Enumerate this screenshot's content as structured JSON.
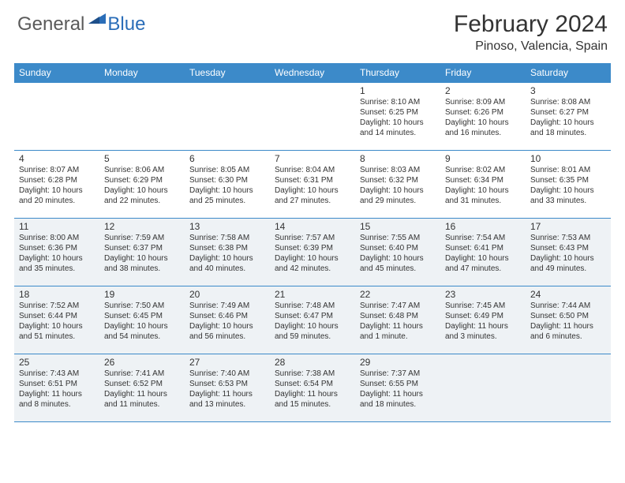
{
  "logo": {
    "text1": "General",
    "text2": "Blue"
  },
  "title": "February 2024",
  "location": "Pinoso, Valencia, Spain",
  "colors": {
    "headerBar": "#3c8ac9",
    "shaded": "#eef2f5",
    "text": "#333333",
    "logoGray": "#5a5a5a",
    "logoBlue": "#2a6db8"
  },
  "dayHeaders": [
    "Sunday",
    "Monday",
    "Tuesday",
    "Wednesday",
    "Thursday",
    "Friday",
    "Saturday"
  ],
  "weeks": [
    [
      {
        "blank": true
      },
      {
        "blank": true
      },
      {
        "blank": true
      },
      {
        "blank": true
      },
      {
        "day": "1",
        "sunrise": "8:10 AM",
        "sunset": "6:25 PM",
        "daylight1": "Daylight: 10 hours",
        "daylight2": "and 14 minutes."
      },
      {
        "day": "2",
        "sunrise": "8:09 AM",
        "sunset": "6:26 PM",
        "daylight1": "Daylight: 10 hours",
        "daylight2": "and 16 minutes."
      },
      {
        "day": "3",
        "sunrise": "8:08 AM",
        "sunset": "6:27 PM",
        "daylight1": "Daylight: 10 hours",
        "daylight2": "and 18 minutes."
      }
    ],
    [
      {
        "day": "4",
        "sunrise": "8:07 AM",
        "sunset": "6:28 PM",
        "daylight1": "Daylight: 10 hours",
        "daylight2": "and 20 minutes."
      },
      {
        "day": "5",
        "sunrise": "8:06 AM",
        "sunset": "6:29 PM",
        "daylight1": "Daylight: 10 hours",
        "daylight2": "and 22 minutes."
      },
      {
        "day": "6",
        "sunrise": "8:05 AM",
        "sunset": "6:30 PM",
        "daylight1": "Daylight: 10 hours",
        "daylight2": "and 25 minutes."
      },
      {
        "day": "7",
        "sunrise": "8:04 AM",
        "sunset": "6:31 PM",
        "daylight1": "Daylight: 10 hours",
        "daylight2": "and 27 minutes."
      },
      {
        "day": "8",
        "sunrise": "8:03 AM",
        "sunset": "6:32 PM",
        "daylight1": "Daylight: 10 hours",
        "daylight2": "and 29 minutes."
      },
      {
        "day": "9",
        "sunrise": "8:02 AM",
        "sunset": "6:34 PM",
        "daylight1": "Daylight: 10 hours",
        "daylight2": "and 31 minutes."
      },
      {
        "day": "10",
        "sunrise": "8:01 AM",
        "sunset": "6:35 PM",
        "daylight1": "Daylight: 10 hours",
        "daylight2": "and 33 minutes."
      }
    ],
    [
      {
        "day": "11",
        "sunrise": "8:00 AM",
        "sunset": "6:36 PM",
        "daylight1": "Daylight: 10 hours",
        "daylight2": "and 35 minutes.",
        "shaded": true
      },
      {
        "day": "12",
        "sunrise": "7:59 AM",
        "sunset": "6:37 PM",
        "daylight1": "Daylight: 10 hours",
        "daylight2": "and 38 minutes.",
        "shaded": true
      },
      {
        "day": "13",
        "sunrise": "7:58 AM",
        "sunset": "6:38 PM",
        "daylight1": "Daylight: 10 hours",
        "daylight2": "and 40 minutes.",
        "shaded": true
      },
      {
        "day": "14",
        "sunrise": "7:57 AM",
        "sunset": "6:39 PM",
        "daylight1": "Daylight: 10 hours",
        "daylight2": "and 42 minutes.",
        "shaded": true
      },
      {
        "day": "15",
        "sunrise": "7:55 AM",
        "sunset": "6:40 PM",
        "daylight1": "Daylight: 10 hours",
        "daylight2": "and 45 minutes.",
        "shaded": true
      },
      {
        "day": "16",
        "sunrise": "7:54 AM",
        "sunset": "6:41 PM",
        "daylight1": "Daylight: 10 hours",
        "daylight2": "and 47 minutes.",
        "shaded": true
      },
      {
        "day": "17",
        "sunrise": "7:53 AM",
        "sunset": "6:43 PM",
        "daylight1": "Daylight: 10 hours",
        "daylight2": "and 49 minutes.",
        "shaded": true
      }
    ],
    [
      {
        "day": "18",
        "sunrise": "7:52 AM",
        "sunset": "6:44 PM",
        "daylight1": "Daylight: 10 hours",
        "daylight2": "and 51 minutes.",
        "shaded": true
      },
      {
        "day": "19",
        "sunrise": "7:50 AM",
        "sunset": "6:45 PM",
        "daylight1": "Daylight: 10 hours",
        "daylight2": "and 54 minutes.",
        "shaded": true
      },
      {
        "day": "20",
        "sunrise": "7:49 AM",
        "sunset": "6:46 PM",
        "daylight1": "Daylight: 10 hours",
        "daylight2": "and 56 minutes.",
        "shaded": true
      },
      {
        "day": "21",
        "sunrise": "7:48 AM",
        "sunset": "6:47 PM",
        "daylight1": "Daylight: 10 hours",
        "daylight2": "and 59 minutes.",
        "shaded": true
      },
      {
        "day": "22",
        "sunrise": "7:47 AM",
        "sunset": "6:48 PM",
        "daylight1": "Daylight: 11 hours",
        "daylight2": "and 1 minute.",
        "shaded": true
      },
      {
        "day": "23",
        "sunrise": "7:45 AM",
        "sunset": "6:49 PM",
        "daylight1": "Daylight: 11 hours",
        "daylight2": "and 3 minutes.",
        "shaded": true
      },
      {
        "day": "24",
        "sunrise": "7:44 AM",
        "sunset": "6:50 PM",
        "daylight1": "Daylight: 11 hours",
        "daylight2": "and 6 minutes.",
        "shaded": true
      }
    ],
    [
      {
        "day": "25",
        "sunrise": "7:43 AM",
        "sunset": "6:51 PM",
        "daylight1": "Daylight: 11 hours",
        "daylight2": "and 8 minutes.",
        "shaded": true
      },
      {
        "day": "26",
        "sunrise": "7:41 AM",
        "sunset": "6:52 PM",
        "daylight1": "Daylight: 11 hours",
        "daylight2": "and 11 minutes.",
        "shaded": true
      },
      {
        "day": "27",
        "sunrise": "7:40 AM",
        "sunset": "6:53 PM",
        "daylight1": "Daylight: 11 hours",
        "daylight2": "and 13 minutes.",
        "shaded": true
      },
      {
        "day": "28",
        "sunrise": "7:38 AM",
        "sunset": "6:54 PM",
        "daylight1": "Daylight: 11 hours",
        "daylight2": "and 15 minutes.",
        "shaded": true
      },
      {
        "day": "29",
        "sunrise": "7:37 AM",
        "sunset": "6:55 PM",
        "daylight1": "Daylight: 11 hours",
        "daylight2": "and 18 minutes.",
        "shaded": true
      },
      {
        "blank": true,
        "shaded": true
      },
      {
        "blank": true,
        "shaded": true
      }
    ]
  ]
}
